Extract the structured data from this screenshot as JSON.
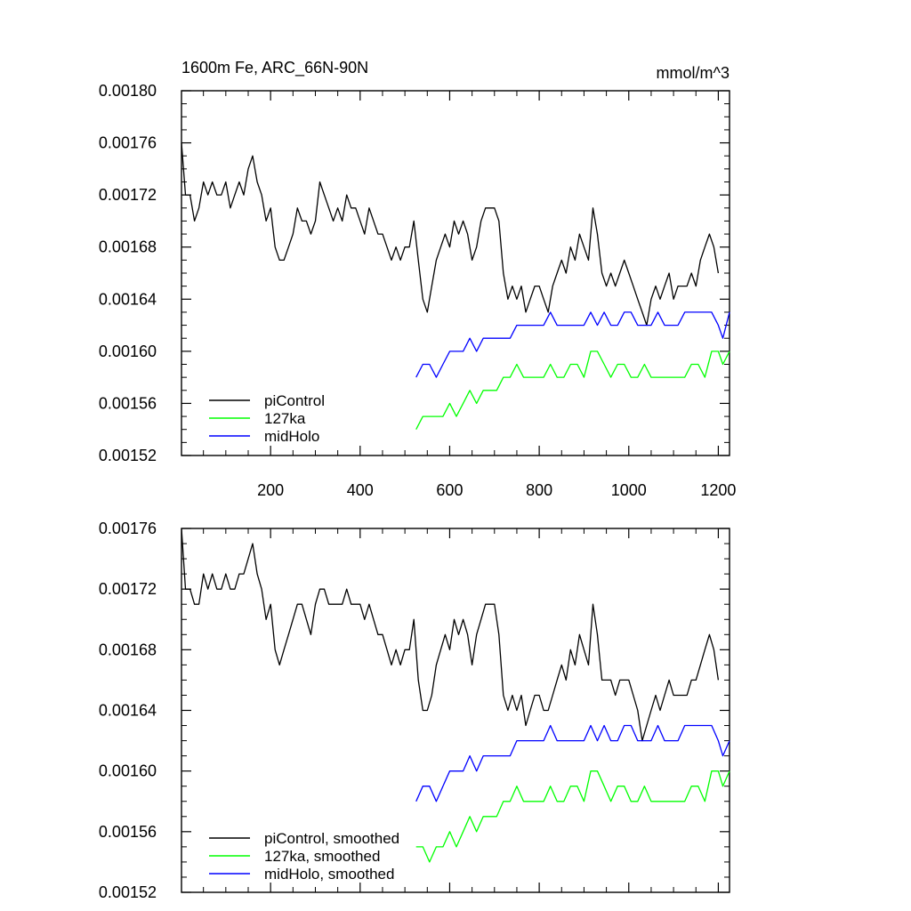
{
  "figure": {
    "title_left": "1600m Fe, ARC_66N-90N",
    "title_right": "mmol/m^3"
  },
  "chart_data": [
    {
      "type": "line",
      "title": "1600m Fe, ARC_66N-90N",
      "units": "mmol/m^3",
      "xlim": [
        1,
        1225
      ],
      "ylim": [
        0.00152,
        0.0018
      ],
      "x_ticks": [
        200,
        400,
        600,
        800,
        1000,
        1200
      ],
      "x_tick_labels": [
        "200",
        "400",
        "600",
        "800",
        "1000",
        "1200"
      ],
      "y_ticks": [
        0.00152,
        0.00156,
        0.0016,
        0.00164,
        0.00168,
        0.00172,
        0.00176,
        0.0018
      ],
      "y_tick_labels": [
        "0.00152",
        "0.00156",
        "0.00160",
        "0.00164",
        "0.00168",
        "0.00172",
        "0.00176",
        "0.00180"
      ],
      "legend": {
        "placement": "bottom-left",
        "entries": [
          "piControl",
          "127ka",
          "midHolo"
        ]
      },
      "series": [
        {
          "name": "piControl",
          "color": "#000000",
          "x": [
            1,
            10,
            20,
            30,
            40,
            50,
            60,
            70,
            80,
            90,
            100,
            110,
            120,
            130,
            140,
            150,
            160,
            170,
            180,
            190,
            200,
            210,
            220,
            230,
            240,
            250,
            260,
            270,
            280,
            290,
            300,
            310,
            320,
            330,
            340,
            350,
            360,
            370,
            380,
            390,
            400,
            410,
            420,
            430,
            440,
            450,
            460,
            470,
            480,
            490,
            500,
            510,
            520,
            530,
            540,
            550,
            560,
            570,
            580,
            590,
            600,
            610,
            620,
            630,
            640,
            650,
            660,
            670,
            680,
            690,
            700,
            710,
            720,
            730,
            740,
            750,
            760,
            770,
            780,
            790,
            800,
            810,
            820,
            830,
            840,
            850,
            860,
            870,
            880,
            890,
            900,
            910,
            920,
            930,
            940,
            950,
            960,
            970,
            980,
            990,
            1000,
            1010,
            1020,
            1030,
            1040,
            1050,
            1060,
            1070,
            1080,
            1090,
            1100,
            1110,
            1120,
            1130,
            1140,
            1150,
            1160,
            1170,
            1180,
            1190,
            1200
          ],
          "y": [
            0.00176,
            0.00172,
            0.00172,
            0.0017,
            0.00171,
            0.00173,
            0.00172,
            0.00173,
            0.00172,
            0.00172,
            0.00173,
            0.00171,
            0.00172,
            0.00173,
            0.00172,
            0.00174,
            0.00175,
            0.00173,
            0.00172,
            0.0017,
            0.00171,
            0.00168,
            0.00167,
            0.00167,
            0.00168,
            0.00169,
            0.00171,
            0.0017,
            0.0017,
            0.00169,
            0.0017,
            0.00173,
            0.00172,
            0.00171,
            0.0017,
            0.00171,
            0.0017,
            0.00172,
            0.00171,
            0.00171,
            0.0017,
            0.00169,
            0.00171,
            0.0017,
            0.00169,
            0.00169,
            0.00168,
            0.00167,
            0.00168,
            0.00167,
            0.00168,
            0.00168,
            0.0017,
            0.00167,
            0.00164,
            0.00163,
            0.00165,
            0.00167,
            0.00168,
            0.00169,
            0.00168,
            0.0017,
            0.00169,
            0.0017,
            0.00169,
            0.00167,
            0.00168,
            0.0017,
            0.00171,
            0.00171,
            0.00171,
            0.0017,
            0.00166,
            0.00164,
            0.00165,
            0.00164,
            0.00165,
            0.00163,
            0.00164,
            0.00165,
            0.00165,
            0.00164,
            0.00163,
            0.00165,
            0.00166,
            0.00167,
            0.00166,
            0.00168,
            0.00167,
            0.00169,
            0.00168,
            0.00167,
            0.00171,
            0.00169,
            0.00166,
            0.00165,
            0.00166,
            0.00165,
            0.00166,
            0.00167,
            0.00166,
            0.00165,
            0.00164,
            0.00163,
            0.00162,
            0.00164,
            0.00165,
            0.00164,
            0.00165,
            0.00166,
            0.00164,
            0.00165,
            0.00165,
            0.00165,
            0.00166,
            0.00165,
            0.00167,
            0.00168,
            0.00169,
            0.00168,
            0.00166
          ]
        },
        {
          "name": "127ka",
          "color": "#00ff00",
          "x": [
            525,
            540,
            555,
            570,
            585,
            600,
            615,
            630,
            645,
            660,
            675,
            690,
            705,
            720,
            735,
            750,
            765,
            780,
            795,
            810,
            825,
            840,
            855,
            870,
            885,
            900,
            915,
            930,
            945,
            960,
            975,
            990,
            1005,
            1020,
            1035,
            1050,
            1065,
            1080,
            1095,
            1110,
            1125,
            1140,
            1155,
            1170,
            1185,
            1200,
            1210,
            1225
          ],
          "y": [
            0.00154,
            0.00155,
            0.00155,
            0.00155,
            0.00155,
            0.00156,
            0.00155,
            0.00156,
            0.00157,
            0.00156,
            0.00157,
            0.00157,
            0.00157,
            0.00158,
            0.00158,
            0.00159,
            0.00158,
            0.00158,
            0.00158,
            0.00158,
            0.00159,
            0.00158,
            0.00158,
            0.00159,
            0.00159,
            0.00158,
            0.0016,
            0.0016,
            0.00159,
            0.00158,
            0.00159,
            0.00159,
            0.00158,
            0.00158,
            0.00159,
            0.00158,
            0.00158,
            0.00158,
            0.00158,
            0.00158,
            0.00158,
            0.00159,
            0.00159,
            0.00158,
            0.0016,
            0.0016,
            0.00159,
            0.0016
          ]
        },
        {
          "name": "midHolo",
          "color": "#0000ff",
          "x": [
            525,
            540,
            555,
            570,
            585,
            600,
            615,
            630,
            645,
            660,
            675,
            690,
            705,
            720,
            735,
            750,
            765,
            780,
            795,
            810,
            825,
            840,
            855,
            870,
            885,
            900,
            915,
            930,
            945,
            960,
            975,
            990,
            1005,
            1020,
            1035,
            1050,
            1065,
            1080,
            1095,
            1110,
            1125,
            1140,
            1155,
            1170,
            1185,
            1200,
            1210,
            1225
          ],
          "y": [
            0.00158,
            0.00159,
            0.00159,
            0.00158,
            0.00159,
            0.0016,
            0.0016,
            0.0016,
            0.00161,
            0.0016,
            0.00161,
            0.00161,
            0.00161,
            0.00161,
            0.00161,
            0.00162,
            0.00162,
            0.00162,
            0.00162,
            0.00162,
            0.00163,
            0.00162,
            0.00162,
            0.00162,
            0.00162,
            0.00162,
            0.00163,
            0.00162,
            0.00163,
            0.00162,
            0.00162,
            0.00163,
            0.00163,
            0.00162,
            0.00162,
            0.00162,
            0.00163,
            0.00162,
            0.00162,
            0.00162,
            0.00163,
            0.00163,
            0.00163,
            0.00163,
            0.00163,
            0.00162,
            0.00161,
            0.00163
          ]
        }
      ]
    },
    {
      "type": "line",
      "xlim": [
        1,
        1225
      ],
      "ylim": [
        0.00152,
        0.00176
      ],
      "x_ticks": [
        200,
        400,
        600,
        800,
        1000,
        1200
      ],
      "x_tick_labels": [],
      "y_ticks": [
        0.00152,
        0.00156,
        0.0016,
        0.00164,
        0.00168,
        0.00172,
        0.00176
      ],
      "y_tick_labels": [
        "0.00152",
        "0.00156",
        "0.00160",
        "0.00164",
        "0.00168",
        "0.00172",
        "0.00176"
      ],
      "legend": {
        "placement": "bottom-left",
        "entries": [
          "piControl, smoothed",
          "127ka, smoothed",
          "midHolo, smoothed"
        ]
      },
      "series": [
        {
          "name": "piControl, smoothed",
          "color": "#000000",
          "x": [
            1,
            10,
            20,
            30,
            40,
            50,
            60,
            70,
            80,
            90,
            100,
            110,
            120,
            130,
            140,
            150,
            160,
            170,
            180,
            190,
            200,
            210,
            220,
            230,
            240,
            250,
            260,
            270,
            280,
            290,
            300,
            310,
            320,
            330,
            340,
            350,
            360,
            370,
            380,
            390,
            400,
            410,
            420,
            430,
            440,
            450,
            460,
            470,
            480,
            490,
            500,
            510,
            520,
            530,
            540,
            550,
            560,
            570,
            580,
            590,
            600,
            610,
            620,
            630,
            640,
            650,
            660,
            670,
            680,
            690,
            700,
            710,
            720,
            730,
            740,
            750,
            760,
            770,
            780,
            790,
            800,
            810,
            820,
            830,
            840,
            850,
            860,
            870,
            880,
            890,
            900,
            910,
            920,
            930,
            940,
            950,
            960,
            970,
            980,
            990,
            1000,
            1010,
            1020,
            1030,
            1040,
            1050,
            1060,
            1070,
            1080,
            1090,
            1100,
            1110,
            1120,
            1130,
            1140,
            1150,
            1160,
            1170,
            1180,
            1190,
            1200
          ],
          "y": [
            0.00176,
            0.00172,
            0.00172,
            0.00171,
            0.00171,
            0.00173,
            0.00172,
            0.00173,
            0.00172,
            0.00172,
            0.00173,
            0.00172,
            0.00172,
            0.00173,
            0.00173,
            0.00174,
            0.00175,
            0.00173,
            0.00172,
            0.0017,
            0.00171,
            0.00168,
            0.00167,
            0.00168,
            0.00169,
            0.0017,
            0.00171,
            0.00171,
            0.0017,
            0.00169,
            0.00171,
            0.00172,
            0.00172,
            0.00171,
            0.00171,
            0.00171,
            0.00171,
            0.00172,
            0.00171,
            0.00171,
            0.00171,
            0.0017,
            0.00171,
            0.0017,
            0.00169,
            0.00169,
            0.00168,
            0.00167,
            0.00168,
            0.00167,
            0.00168,
            0.00168,
            0.0017,
            0.00166,
            0.00164,
            0.00164,
            0.00165,
            0.00167,
            0.00168,
            0.00169,
            0.00168,
            0.0017,
            0.00169,
            0.0017,
            0.00169,
            0.00167,
            0.00169,
            0.0017,
            0.00171,
            0.00171,
            0.00171,
            0.00169,
            0.00165,
            0.00164,
            0.00165,
            0.00164,
            0.00165,
            0.00163,
            0.00164,
            0.00165,
            0.00165,
            0.00164,
            0.00164,
            0.00165,
            0.00166,
            0.00167,
            0.00166,
            0.00168,
            0.00167,
            0.00169,
            0.00168,
            0.00167,
            0.00171,
            0.00169,
            0.00166,
            0.00166,
            0.00166,
            0.00165,
            0.00166,
            0.00166,
            0.00166,
            0.00165,
            0.00164,
            0.00162,
            0.00163,
            0.00164,
            0.00165,
            0.00164,
            0.00165,
            0.00166,
            0.00165,
            0.00165,
            0.00165,
            0.00165,
            0.00166,
            0.00166,
            0.00167,
            0.00168,
            0.00169,
            0.00168,
            0.00166
          ]
        },
        {
          "name": "127ka, smoothed",
          "color": "#00ff00",
          "x": [
            525,
            540,
            555,
            570,
            585,
            600,
            615,
            630,
            645,
            660,
            675,
            690,
            705,
            720,
            735,
            750,
            765,
            780,
            795,
            810,
            825,
            840,
            855,
            870,
            885,
            900,
            915,
            930,
            945,
            960,
            975,
            990,
            1005,
            1020,
            1035,
            1050,
            1065,
            1080,
            1095,
            1110,
            1125,
            1140,
            1155,
            1170,
            1185,
            1200,
            1210,
            1225
          ],
          "y": [
            0.00155,
            0.00155,
            0.00154,
            0.00155,
            0.00155,
            0.00156,
            0.00155,
            0.00156,
            0.00157,
            0.00156,
            0.00157,
            0.00157,
            0.00157,
            0.00158,
            0.00158,
            0.00159,
            0.00158,
            0.00158,
            0.00158,
            0.00158,
            0.00159,
            0.00158,
            0.00158,
            0.00159,
            0.00159,
            0.00158,
            0.0016,
            0.0016,
            0.00159,
            0.00158,
            0.00159,
            0.00159,
            0.00158,
            0.00158,
            0.00159,
            0.00158,
            0.00158,
            0.00158,
            0.00158,
            0.00158,
            0.00158,
            0.00159,
            0.00159,
            0.00158,
            0.0016,
            0.0016,
            0.00159,
            0.0016
          ]
        },
        {
          "name": "midHolo, smoothed",
          "color": "#0000ff",
          "x": [
            525,
            540,
            555,
            570,
            585,
            600,
            615,
            630,
            645,
            660,
            675,
            690,
            705,
            720,
            735,
            750,
            765,
            780,
            795,
            810,
            825,
            840,
            855,
            870,
            885,
            900,
            915,
            930,
            945,
            960,
            975,
            990,
            1005,
            1020,
            1035,
            1050,
            1065,
            1080,
            1095,
            1110,
            1125,
            1140,
            1155,
            1170,
            1185,
            1200,
            1210,
            1225
          ],
          "y": [
            0.00158,
            0.00159,
            0.00159,
            0.00158,
            0.00159,
            0.0016,
            0.0016,
            0.0016,
            0.00161,
            0.0016,
            0.00161,
            0.00161,
            0.00161,
            0.00161,
            0.00161,
            0.00162,
            0.00162,
            0.00162,
            0.00162,
            0.00162,
            0.00163,
            0.00162,
            0.00162,
            0.00162,
            0.00162,
            0.00162,
            0.00163,
            0.00162,
            0.00163,
            0.00162,
            0.00162,
            0.00163,
            0.00163,
            0.00162,
            0.00162,
            0.00162,
            0.00163,
            0.00162,
            0.00162,
            0.00162,
            0.00163,
            0.00163,
            0.00163,
            0.00163,
            0.00163,
            0.00162,
            0.00161,
            0.00162
          ]
        }
      ]
    }
  ]
}
